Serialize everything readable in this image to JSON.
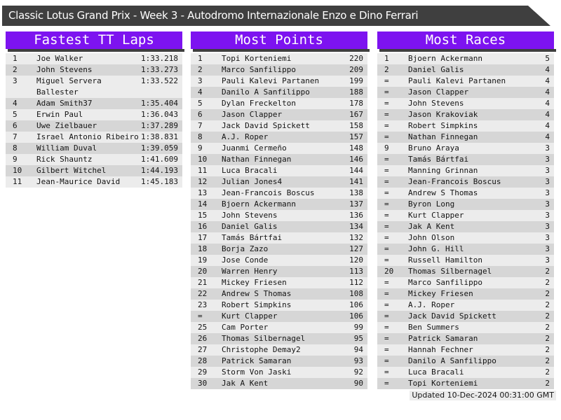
{
  "title": "Classic Lotus Grand Prix - Week 3 - Autodromo Internazionale Enzo e Dino Ferrari",
  "footer": {
    "updated": "Updated 10-Dec-2024 00:31:00 GMT"
  },
  "colors": {
    "accent_purple": "#7d13f0",
    "bar_dark": "#3f3f3f",
    "row_light": "#ececec",
    "row_dark": "#d6d6d6"
  },
  "boards": [
    {
      "title": "Fastest TT Laps",
      "rows": [
        {
          "pos": "1",
          "name": "Joe Walker",
          "value": "1:33.218"
        },
        {
          "pos": "2",
          "name": "John Stevens",
          "value": "1:33.273"
        },
        {
          "pos": "3",
          "name": "Miguel Servera Ballester",
          "value": "1:33.522"
        },
        {
          "pos": "4",
          "name": "Adam Smith37",
          "value": "1:35.404"
        },
        {
          "pos": "5",
          "name": "Erwin Paul",
          "value": "1:36.043"
        },
        {
          "pos": "6",
          "name": "Uwe Zielbauer",
          "value": "1:37.289"
        },
        {
          "pos": "7",
          "name": "Israel Antonio Ribeiro",
          "value": "1:38.831"
        },
        {
          "pos": "8",
          "name": "William Duval",
          "value": "1:39.059"
        },
        {
          "pos": "9",
          "name": "Rick Shauntz",
          "value": "1:41.609"
        },
        {
          "pos": "10",
          "name": "Gilbert Witchel",
          "value": "1:44.193"
        },
        {
          "pos": "11",
          "name": "Jean-Maurice David",
          "value": "1:45.183"
        }
      ]
    },
    {
      "title": "Most Points",
      "rows": [
        {
          "pos": "1",
          "name": "Topi Korteniemi",
          "value": "220"
        },
        {
          "pos": "2",
          "name": "Marco Sanfilippo",
          "value": "209"
        },
        {
          "pos": "3",
          "name": "Pauli Kalevi Partanen",
          "value": "199"
        },
        {
          "pos": "4",
          "name": "Danilo A Sanfilippo",
          "value": "188"
        },
        {
          "pos": "5",
          "name": "Dylan Freckelton",
          "value": "178"
        },
        {
          "pos": "6",
          "name": "Jason Clapper",
          "value": "167"
        },
        {
          "pos": "7",
          "name": "Jack David Spickett",
          "value": "158"
        },
        {
          "pos": "8",
          "name": "A.J. Roper",
          "value": "157"
        },
        {
          "pos": "9",
          "name": "Juanmi Cermeño",
          "value": "148"
        },
        {
          "pos": "10",
          "name": "Nathan Finnegan",
          "value": "146"
        },
        {
          "pos": "11",
          "name": "Luca Bracali",
          "value": "144"
        },
        {
          "pos": "12",
          "name": "Julian Jones4",
          "value": "141"
        },
        {
          "pos": "13",
          "name": "Jean-Francois Boscus",
          "value": "138"
        },
        {
          "pos": "14",
          "name": "Bjoern Ackermann",
          "value": "137"
        },
        {
          "pos": "15",
          "name": "John Stevens",
          "value": "136"
        },
        {
          "pos": "16",
          "name": "Daniel Galis",
          "value": "134"
        },
        {
          "pos": "17",
          "name": "Tamás Bártfai",
          "value": "132"
        },
        {
          "pos": "18",
          "name": "Borja Zazo",
          "value": "127"
        },
        {
          "pos": "19",
          "name": "Jose Conde",
          "value": "120"
        },
        {
          "pos": "20",
          "name": "Warren Henry",
          "value": "113"
        },
        {
          "pos": "21",
          "name": "Mickey Friesen",
          "value": "112"
        },
        {
          "pos": "22",
          "name": "Andrew S Thomas",
          "value": "108"
        },
        {
          "pos": "23",
          "name": "Robert Simpkins",
          "value": "106"
        },
        {
          "pos": "=",
          "name": "Kurt Clapper",
          "value": "106"
        },
        {
          "pos": "25",
          "name": "Cam Porter",
          "value": "99"
        },
        {
          "pos": "26",
          "name": "Thomas Silbernagel",
          "value": "95"
        },
        {
          "pos": "27",
          "name": "Christophe Demay2",
          "value": "94"
        },
        {
          "pos": "28",
          "name": "Patrick Samaran",
          "value": "93"
        },
        {
          "pos": "29",
          "name": "Storm Von Jaski",
          "value": "92"
        },
        {
          "pos": "30",
          "name": "Jak A Kent",
          "value": "90"
        }
      ]
    },
    {
      "title": "Most Races",
      "rows": [
        {
          "pos": "1",
          "name": "Bjoern Ackermann",
          "value": "5"
        },
        {
          "pos": "2",
          "name": "Daniel Galis",
          "value": "4"
        },
        {
          "pos": "=",
          "name": "Pauli Kalevi Partanen",
          "value": "4"
        },
        {
          "pos": "=",
          "name": "Jason Clapper",
          "value": "4"
        },
        {
          "pos": "=",
          "name": "John Stevens",
          "value": "4"
        },
        {
          "pos": "=",
          "name": "Jason Krakoviak",
          "value": "4"
        },
        {
          "pos": "=",
          "name": "Robert Simpkins",
          "value": "4"
        },
        {
          "pos": "=",
          "name": "Nathan Finnegan",
          "value": "4"
        },
        {
          "pos": "9",
          "name": "Bruno Araya",
          "value": "3"
        },
        {
          "pos": "=",
          "name": "Tamás Bártfai",
          "value": "3"
        },
        {
          "pos": "=",
          "name": "Manning Grinnan",
          "value": "3"
        },
        {
          "pos": "=",
          "name": "Jean-Francois Boscus",
          "value": "3"
        },
        {
          "pos": "=",
          "name": "Andrew S Thomas",
          "value": "3"
        },
        {
          "pos": "=",
          "name": "Byron Long",
          "value": "3"
        },
        {
          "pos": "=",
          "name": "Kurt Clapper",
          "value": "3"
        },
        {
          "pos": "=",
          "name": "Jak A Kent",
          "value": "3"
        },
        {
          "pos": "=",
          "name": "John Olson",
          "value": "3"
        },
        {
          "pos": "=",
          "name": "John G. Hill",
          "value": "3"
        },
        {
          "pos": "=",
          "name": "Russell Hamilton",
          "value": "3"
        },
        {
          "pos": "20",
          "name": "Thomas Silbernagel",
          "value": "2"
        },
        {
          "pos": "=",
          "name": "Marco Sanfilippo",
          "value": "2"
        },
        {
          "pos": "=",
          "name": "Mickey Friesen",
          "value": "2"
        },
        {
          "pos": "=",
          "name": "A.J. Roper",
          "value": "2"
        },
        {
          "pos": "=",
          "name": "Jack David Spickett",
          "value": "2"
        },
        {
          "pos": "=",
          "name": "Ben Summers",
          "value": "2"
        },
        {
          "pos": "=",
          "name": "Patrick Samaran",
          "value": "2"
        },
        {
          "pos": "=",
          "name": "Hannah Fechner",
          "value": "2"
        },
        {
          "pos": "=",
          "name": "Danilo A Sanfilippo",
          "value": "2"
        },
        {
          "pos": "=",
          "name": "Luca Bracali",
          "value": "2"
        },
        {
          "pos": "=",
          "name": "Topi Korteniemi",
          "value": "2"
        }
      ]
    }
  ]
}
